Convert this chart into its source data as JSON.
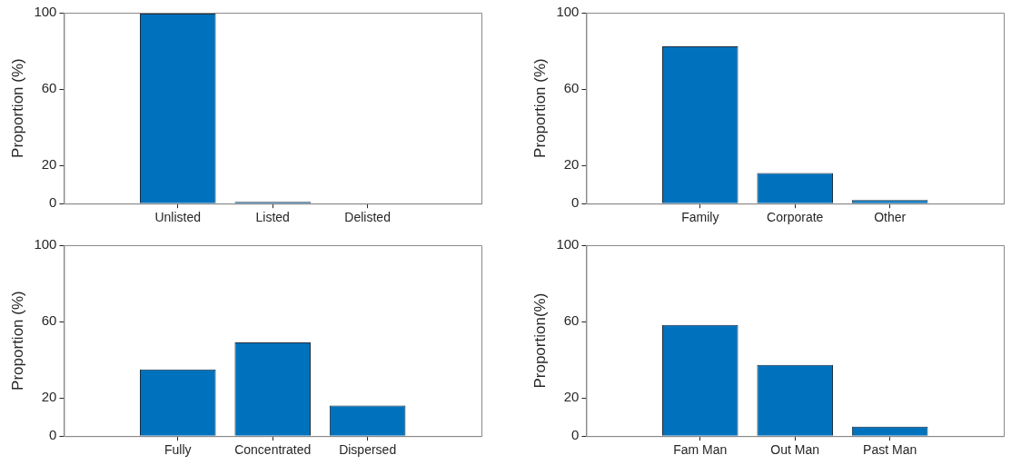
{
  "chart_data": [
    {
      "type": "bar",
      "ylabel": "Proportion (%)",
      "categories": [
        "Unlisted",
        "Listed",
        "Delisted"
      ],
      "values": [
        99.5,
        0.9,
        0
      ],
      "color": "#0072bd",
      "ylim": [
        0,
        100
      ],
      "yticks": [
        0,
        20,
        60,
        100
      ]
    },
    {
      "type": "bar",
      "ylabel": "Proportion (%)",
      "categories": [
        "Family",
        "Corporate",
        "Other"
      ],
      "values": [
        82.4,
        16,
        1.9
      ],
      "color": "#0072bd",
      "ylim": [
        0,
        100
      ],
      "yticks": [
        0,
        20,
        60,
        100
      ]
    },
    {
      "type": "bar",
      "ylabel": "Proportion (%)",
      "categories": [
        "Fully",
        "Concentrated",
        "Dispersed"
      ],
      "values": [
        35,
        49.1,
        16
      ],
      "color": "#0072bd",
      "ylim": [
        0,
        100
      ],
      "yticks": [
        0,
        20,
        60,
        100
      ]
    },
    {
      "type": "bar",
      "ylabel": "Proportion(%)",
      "categories": [
        "Fam Man",
        "Out Man",
        "Past Man"
      ],
      "values": [
        58.2,
        37.3,
        5
      ],
      "color": "#0072bd",
      "ylim": [
        0,
        100
      ],
      "yticks": [
        0,
        20,
        60,
        100
      ]
    }
  ]
}
